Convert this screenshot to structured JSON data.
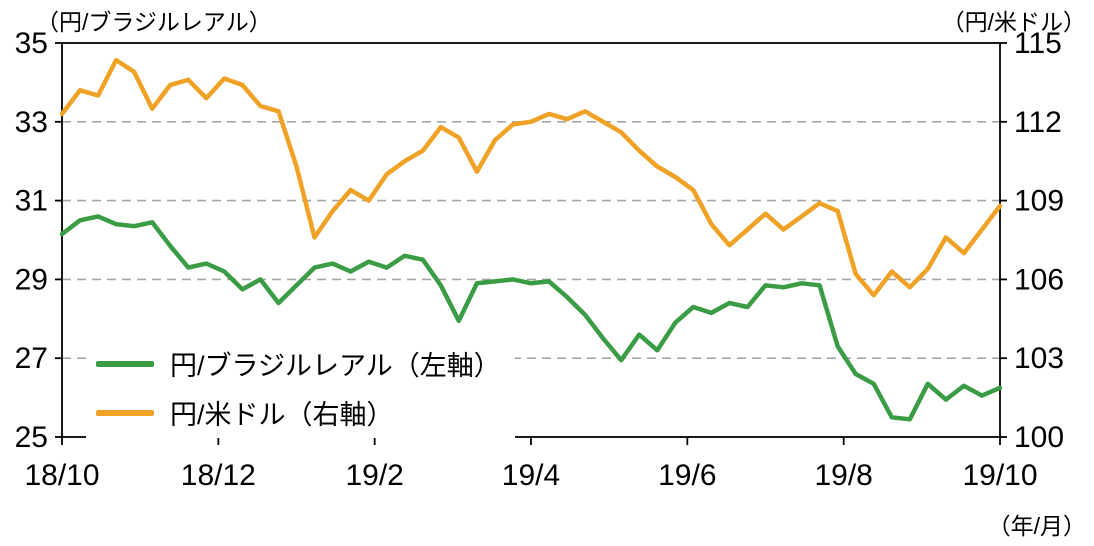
{
  "chart_data": {
    "type": "line",
    "title": "",
    "x_axis": {
      "unit_label": "（年/月）",
      "tick_labels": [
        "18/10",
        "18/12",
        "19/2",
        "19/4",
        "19/6",
        "19/8",
        "19/10"
      ]
    },
    "left_axis": {
      "title": "（円/ブラジルレアル）",
      "min": 25,
      "max": 35,
      "ticks": [
        35,
        33,
        31,
        29,
        27,
        25
      ]
    },
    "right_axis": {
      "title": "（円/米ドル）",
      "min": 100,
      "max": 115,
      "ticks": [
        115,
        112,
        109,
        106,
        103,
        100
      ]
    },
    "gridline_left_values": [
      33,
      31,
      29,
      27
    ],
    "legend_position": "inside-bottom-left",
    "series": [
      {
        "name": "円/ブラジルレアル（左軸）",
        "axis": "left",
        "color": "#3a9c44",
        "sampling": "weekly Oct 2018 - Oct 2019",
        "values": [
          30.15,
          30.5,
          30.6,
          30.4,
          30.35,
          30.45,
          29.85,
          29.3,
          29.4,
          29.2,
          28.75,
          29.0,
          28.4,
          28.85,
          29.3,
          29.4,
          29.2,
          29.45,
          29.3,
          29.6,
          29.5,
          28.85,
          27.95,
          28.9,
          28.95,
          29.0,
          28.9,
          28.95,
          28.55,
          28.1,
          27.5,
          26.95,
          27.6,
          27.2,
          27.9,
          28.3,
          28.15,
          28.4,
          28.3,
          28.85,
          28.8,
          28.9,
          28.85,
          27.3,
          26.6,
          26.35,
          25.5,
          25.45,
          26.35,
          25.95,
          26.3,
          26.05,
          26.25
        ]
      },
      {
        "name": "円/米ドル（右軸）",
        "axis": "right",
        "color": "#efa226",
        "sampling": "weekly Oct 2018 - Oct 2019",
        "values": [
          112.3,
          113.2,
          113.0,
          114.35,
          113.9,
          112.5,
          113.4,
          113.6,
          112.9,
          113.65,
          113.4,
          112.6,
          112.4,
          110.3,
          107.6,
          108.6,
          109.4,
          109.0,
          110.0,
          110.5,
          110.9,
          111.8,
          111.4,
          110.1,
          111.3,
          111.9,
          112.0,
          112.3,
          112.1,
          112.4,
          112.0,
          111.6,
          110.9,
          110.3,
          109.9,
          109.4,
          108.1,
          107.3,
          107.9,
          108.5,
          107.9,
          108.4,
          108.9,
          108.6,
          106.2,
          105.4,
          106.3,
          105.7,
          106.4,
          107.6,
          107.0,
          107.9,
          108.8
        ]
      }
    ],
    "style": {
      "grid_color": "#a6a6a6",
      "axis_color": "#000000",
      "text_color": "#000000",
      "background": "#ffffff",
      "tick_font_size": 30,
      "line_width": 4.5
    }
  }
}
